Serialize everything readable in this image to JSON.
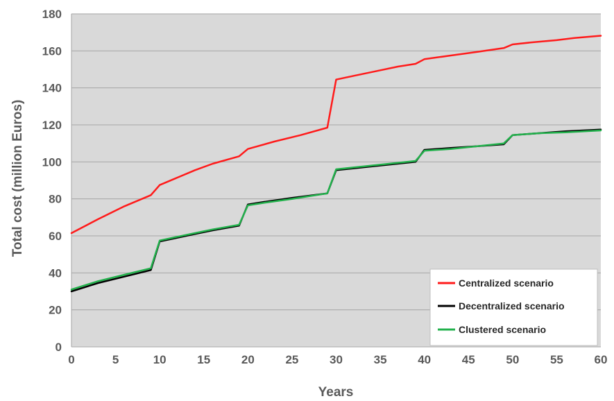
{
  "chart_data": {
    "type": "line",
    "title": "",
    "xlabel": "Years",
    "ylabel": "Total cost (million Euros)",
    "xlim": [
      0,
      60
    ],
    "ylim": [
      0,
      180
    ],
    "xticks": [
      0,
      5,
      10,
      15,
      20,
      25,
      30,
      35,
      40,
      45,
      50,
      55,
      60
    ],
    "yticks": [
      0,
      20,
      40,
      60,
      80,
      100,
      120,
      140,
      160,
      180
    ],
    "grid": true,
    "legend_position": "bottom-right",
    "colors": {
      "plot_background": "#d9d9d9",
      "grid": "#a6a6a6"
    },
    "series": [
      {
        "name": "Centralized scenario",
        "color": "#ff1a1a",
        "points": [
          [
            0,
            61.5
          ],
          [
            3,
            69
          ],
          [
            6,
            76
          ],
          [
            9,
            82
          ],
          [
            10,
            87.5
          ],
          [
            12,
            91.5
          ],
          [
            14,
            95.5
          ],
          [
            16,
            99
          ],
          [
            19,
            103
          ],
          [
            20,
            107
          ],
          [
            23,
            111
          ],
          [
            26,
            114.5
          ],
          [
            29,
            118.5
          ],
          [
            30,
            144.5
          ],
          [
            32,
            146.5
          ],
          [
            35,
            149.5
          ],
          [
            37,
            151.5
          ],
          [
            39,
            153
          ],
          [
            40,
            155.5
          ],
          [
            43,
            157.5
          ],
          [
            46,
            159.5
          ],
          [
            49,
            161.5
          ],
          [
            50,
            163.5
          ],
          [
            52,
            164.5
          ],
          [
            55,
            165.8
          ],
          [
            57,
            167
          ],
          [
            60,
            168.2
          ]
        ]
      },
      {
        "name": "Decentralized scenario",
        "color": "#000000",
        "points": [
          [
            0,
            30
          ],
          [
            3,
            34.5
          ],
          [
            6,
            38
          ],
          [
            9,
            41.5
          ],
          [
            10,
            57
          ],
          [
            12,
            59
          ],
          [
            14,
            61
          ],
          [
            16,
            63
          ],
          [
            19,
            65.5
          ],
          [
            20,
            77
          ],
          [
            22,
            78.5
          ],
          [
            25,
            80.5
          ],
          [
            29,
            83
          ],
          [
            30,
            95.5
          ],
          [
            33,
            97
          ],
          [
            36,
            98.5
          ],
          [
            39,
            100
          ],
          [
            40,
            106.5
          ],
          [
            43,
            107.5
          ],
          [
            46,
            108.5
          ],
          [
            49,
            109.5
          ],
          [
            50,
            114.5
          ],
          [
            53,
            115.5
          ],
          [
            56,
            116.5
          ],
          [
            60,
            117.5
          ]
        ]
      },
      {
        "name": "Clustered scenario",
        "color": "#22b14c",
        "points": [
          [
            0,
            31
          ],
          [
            3,
            35.5
          ],
          [
            6,
            39
          ],
          [
            9,
            42.5
          ],
          [
            10,
            57.5
          ],
          [
            12,
            59.5
          ],
          [
            14,
            61.5
          ],
          [
            16,
            63.5
          ],
          [
            19,
            66
          ],
          [
            20,
            76.5
          ],
          [
            22,
            78
          ],
          [
            25,
            80
          ],
          [
            29,
            83
          ],
          [
            30,
            96
          ],
          [
            33,
            97.5
          ],
          [
            36,
            99
          ],
          [
            39,
            100.5
          ],
          [
            40,
            106
          ],
          [
            43,
            107
          ],
          [
            46,
            108.5
          ],
          [
            49,
            110
          ],
          [
            50,
            114.5
          ],
          [
            53,
            115.5
          ],
          [
            56,
            116
          ],
          [
            60,
            117
          ]
        ]
      }
    ]
  }
}
